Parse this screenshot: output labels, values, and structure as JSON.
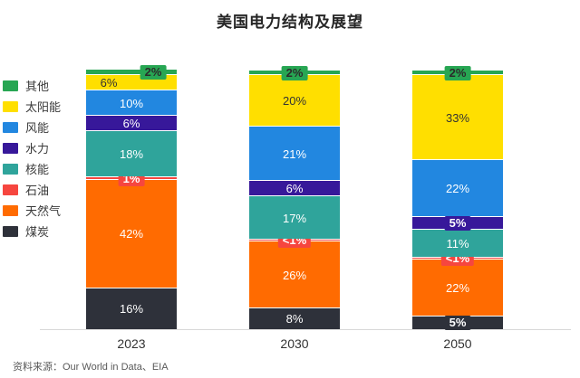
{
  "title": "美国电力结构及展望",
  "source": "资料来源：Our World in Data、EIA",
  "chart_data": {
    "type": "bar",
    "stacked": true,
    "unit": "%",
    "categories": [
      "2023",
      "2030",
      "2050"
    ],
    "series": [
      {
        "key": "coal",
        "name": "煤炭",
        "color": "#2e313a",
        "label_color": "#ffffff",
        "values": [
          16,
          8,
          5
        ],
        "labels": [
          "16%",
          "8%",
          "5%"
        ]
      },
      {
        "key": "gas",
        "name": "天然气",
        "color": "#ff6b01",
        "label_color": "#ffffff",
        "values": [
          42,
          26,
          22
        ],
        "labels": [
          "42%",
          "26%",
          "22%"
        ]
      },
      {
        "key": "oil",
        "name": "石油",
        "color": "#f6463f",
        "label_color": "#ffffff",
        "values": [
          1,
          0.8,
          0.8
        ],
        "labels": [
          "1%",
          "<1%",
          "<1%"
        ]
      },
      {
        "key": "nuclear",
        "name": "核能",
        "color": "#2fa49b",
        "label_color": "#ffffff",
        "values": [
          18,
          17,
          11
        ],
        "labels": [
          "18%",
          "17%",
          "11%"
        ]
      },
      {
        "key": "hydro",
        "name": "水力",
        "color": "#37189a",
        "label_color": "#ffffff",
        "values": [
          6,
          6,
          5
        ],
        "labels": [
          "6%",
          "6%",
          "5%"
        ]
      },
      {
        "key": "wind",
        "name": "风能",
        "color": "#2287e0",
        "label_color": "#ffffff",
        "values": [
          10,
          21,
          22
        ],
        "labels": [
          "10%",
          "21%",
          "22%"
        ]
      },
      {
        "key": "solar",
        "name": "太阳能",
        "color": "#ffdf00",
        "label_color": "#333333",
        "values": [
          6,
          20,
          33
        ],
        "labels": [
          "6%",
          "20%",
          "33%"
        ]
      },
      {
        "key": "other",
        "name": "其他",
        "color": "#27a653",
        "label_color": "#2b2b2b",
        "values": [
          2,
          2,
          2
        ],
        "labels": [
          "2%",
          "2%",
          "2%"
        ]
      }
    ],
    "legend_position": "left",
    "legend_order": [
      "其他",
      "太阳能",
      "风能",
      "水力",
      "核能",
      "石油",
      "天然气",
      "煤炭"
    ],
    "grid": false,
    "ylim": [
      0,
      100
    ]
  }
}
